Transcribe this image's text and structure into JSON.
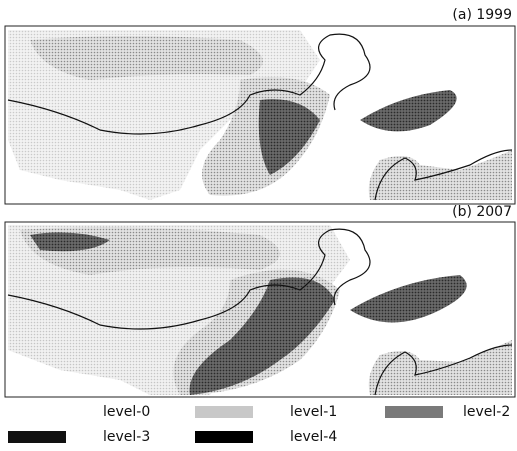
{
  "panels": [
    {
      "label": "(a) 1999"
    },
    {
      "label": "(b) 2007"
    }
  ],
  "legend": [
    {
      "label": "level-0",
      "color": "#ffffff"
    },
    {
      "label": "level-1",
      "color": "#c8c8c8"
    },
    {
      "label": "level-2",
      "color": "#7a7a7a"
    },
    {
      "label": "level-3",
      "color": "#111111"
    },
    {
      "label": "level-4",
      "color": "#000000"
    }
  ]
}
